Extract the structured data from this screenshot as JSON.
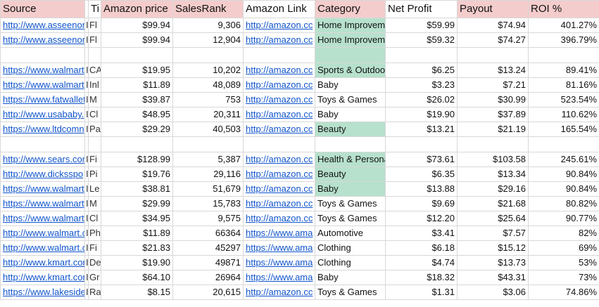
{
  "columns": [
    "Source",
    "Ti",
    "Amazon price",
    "SalesRank",
    "Amazon Link",
    "Category",
    "Net Profit",
    "Payout",
    "ROI %"
  ],
  "highlight_color": "#b7e1cd",
  "header_color": "#f4cccc",
  "link_color": "#1155cc",
  "rows": [
    {
      "source": "http://www.asseenor",
      "p1": "I",
      "p2": "Fl",
      "price": "$99.94",
      "rank": "9,306",
      "link": "http://amazon.cc",
      "category": "Home Improvem",
      "net": "$59.99",
      "payout": "$74.94",
      "roi": "401.27%"
    },
    {
      "source": "http://www.asseenor",
      "p1": "I",
      "p2": "Fl",
      "price": "$99.94",
      "rank": "12,904",
      "link": "http://amazon.cc",
      "category": "Home Improvem",
      "net": "$59.32",
      "payout": "$74.27",
      "roi": "396.79%"
    },
    {
      "source": "",
      "p1": "",
      "p2": "",
      "price": "",
      "rank": "",
      "link": "",
      "category": "",
      "net": "",
      "payout": "",
      "roi": ""
    },
    {
      "source": "https://www.walmart",
      "p1": "I",
      "p2": "CA",
      "price": "$19.95",
      "rank": "10,202",
      "link": "http://amazon.cc",
      "category": "Sports & Outdoo",
      "net": "$6.25",
      "payout": "$13.24",
      "roi": "89.41%"
    },
    {
      "source": "https://www.walmart",
      "p1": "I",
      "p2": "Inl",
      "price": "$11.89",
      "rank": "48,089",
      "link": "http://amazon.cc",
      "category": "Baby",
      "net": "$3.23",
      "payout": "$7.21",
      "roi": "81.16%"
    },
    {
      "source": "https://www.fatwallet",
      "p1": "I",
      "p2": "M",
      "price": "$39.87",
      "rank": "753",
      "link": "http://amazon.cc",
      "category": "Toys & Games",
      "net": "$26.02",
      "payout": "$30.99",
      "roi": "523.54%"
    },
    {
      "source": "http://www.usababy.",
      "p1": "I",
      "p2": "Cl",
      "price": "$48.95",
      "rank": "20,311",
      "link": "http://amazon.cc",
      "category": "Baby",
      "net": "$19.90",
      "payout": "$37.89",
      "roi": "110.62%"
    },
    {
      "source": "https://www.ltdcomn",
      "p1": "I",
      "p2": "Pa",
      "price": "$29.29",
      "rank": "40,503",
      "link": "http://amazon.cc",
      "category": "Beauty",
      "net": "$13.21",
      "payout": "$21.19",
      "roi": "165.54%"
    },
    {
      "source": "",
      "p1": "",
      "p2": "",
      "price": "",
      "rank": "",
      "link": "",
      "category": "",
      "net": "",
      "payout": "",
      "roi": ""
    },
    {
      "source": "http://www.sears.cor",
      "p1": "I",
      "p2": "Fi",
      "price": "$128.99",
      "rank": "5,387",
      "link": "http://amazon.cc",
      "category": "Health & Persona",
      "net": "$73.61",
      "payout": "$103.58",
      "roi": "245.61%"
    },
    {
      "source": "http://www.dicksspo",
      "p1": "I",
      "p2": "Pi",
      "price": "$19.76",
      "rank": "29,116",
      "link": "http://amazon.cc",
      "category": "Beauty",
      "net": "$6.35",
      "payout": "$13.34",
      "roi": "90.84%"
    },
    {
      "source": "https://www.walmart",
      "p1": "I",
      "p2": "Le",
      "price": "$38.81",
      "rank": "51,679",
      "link": "http://amazon.cc",
      "category": "Baby",
      "net": "$13.88",
      "payout": "$29.16",
      "roi": "90.84%"
    },
    {
      "source": "https://www.walmart",
      "p1": "I",
      "p2": "M",
      "price": "$29.99",
      "rank": "15,783",
      "link": "http://amazon.cc",
      "category": "Toys & Games",
      "net": "$9.69",
      "payout": "$21.68",
      "roi": "80.82%"
    },
    {
      "source": "https://www.walmart",
      "p1": "I",
      "p2": "Cl",
      "price": "$34.95",
      "rank": "9,575",
      "link": "http://amazon.cc",
      "category": "Toys & Games",
      "net": "$12.20",
      "payout": "$25.64",
      "roi": "90.77%"
    },
    {
      "source": "http://www.walmart.c",
      "p1": "I",
      "p2": "Ph",
      "price": "$11.89",
      "rank": "66364",
      "link": "https://www.ama",
      "category": "Automotive",
      "net": "$3.41",
      "payout": "$7.57",
      "roi": "82%"
    },
    {
      "source": "http://www.walmart.c",
      "p1": "I",
      "p2": "Fi",
      "price": "$21.83",
      "rank": "45297",
      "link": "https://www.ama",
      "category": "Clothing",
      "net": "$6.18",
      "payout": "$15.12",
      "roi": "69%"
    },
    {
      "source": "http://www.kmart.cor",
      "p1": "I",
      "p2": "De",
      "price": "$19.90",
      "rank": "49871",
      "link": "https://www.ama",
      "category": "Clothing",
      "net": "$4.74",
      "payout": "$13.73",
      "roi": "53%"
    },
    {
      "source": "http://www.kmart.cor",
      "p1": "I",
      "p2": "Gr",
      "price": "$64.10",
      "rank": "26964",
      "link": "https://www.ama",
      "category": "Baby",
      "net": "$18.32",
      "payout": "$43.31",
      "roi": "73%"
    },
    {
      "source": "https://www.lakeside",
      "p1": "I",
      "p2": "Ra",
      "price": "$8.15",
      "rank": "20,615",
      "link": "http://amazon.cc",
      "category": "Toys & Games",
      "net": "$1.31",
      "payout": "$3.06",
      "roi": "74.86%"
    }
  ]
}
